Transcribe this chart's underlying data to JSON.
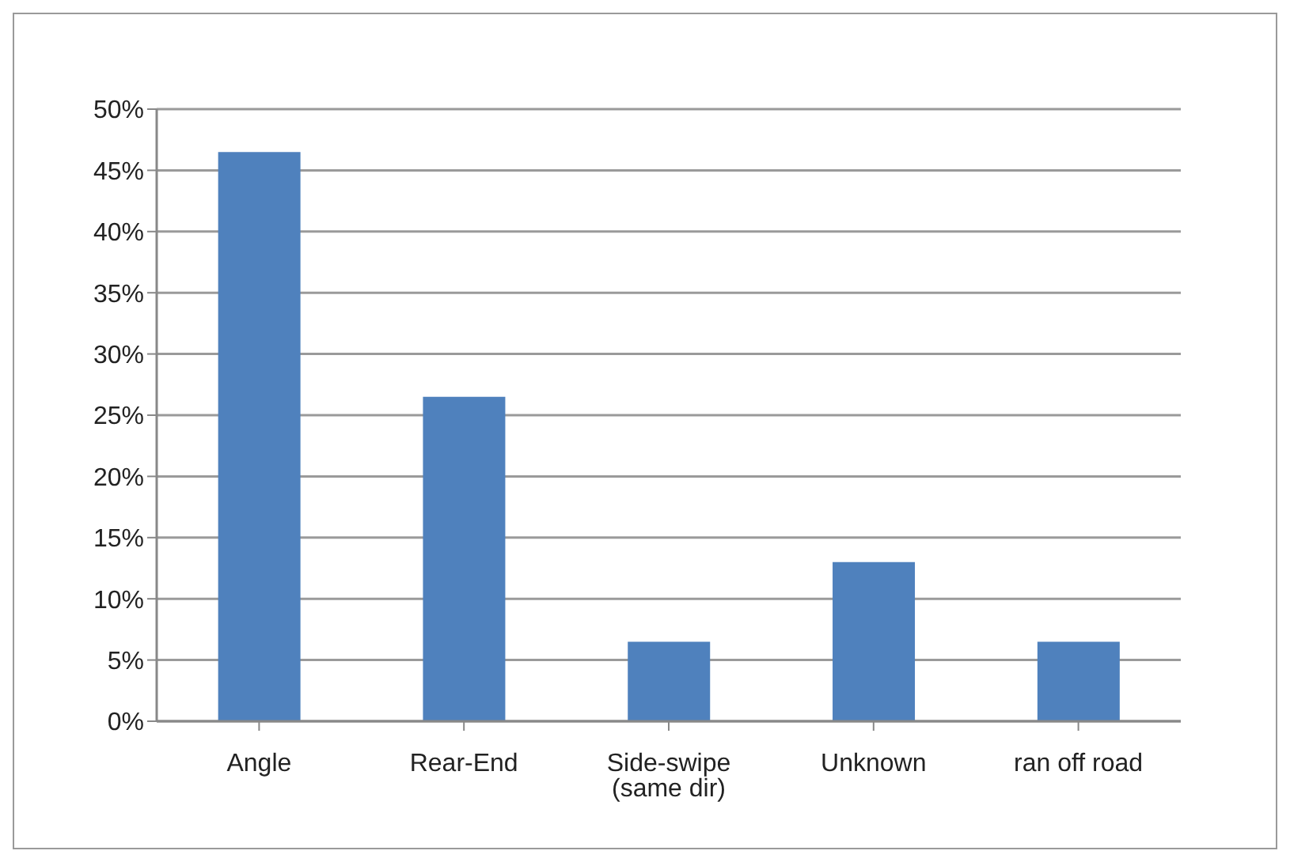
{
  "chart_data": {
    "type": "bar",
    "categories": [
      "Angle",
      "Rear-End",
      "Side-swipe (same dir)",
      "Unknown",
      "ran off road"
    ],
    "values": [
      46.5,
      26.5,
      6.5,
      13,
      6.5
    ],
    "color": "#4f81bd",
    "ylim": [
      0,
      50
    ],
    "yticks": [
      {
        "value": 0,
        "label": "0%"
      },
      {
        "value": 5,
        "label": "5%"
      },
      {
        "value": 10,
        "label": "10%"
      },
      {
        "value": 15,
        "label": "15%"
      },
      {
        "value": 20,
        "label": "20%"
      },
      {
        "value": 25,
        "label": "25%"
      },
      {
        "value": 30,
        "label": "30%"
      },
      {
        "value": 35,
        "label": "35%"
      },
      {
        "value": 40,
        "label": "40%"
      },
      {
        "value": 45,
        "label": "45%"
      },
      {
        "value": 50,
        "label": "50%"
      }
    ],
    "grid": "y"
  }
}
